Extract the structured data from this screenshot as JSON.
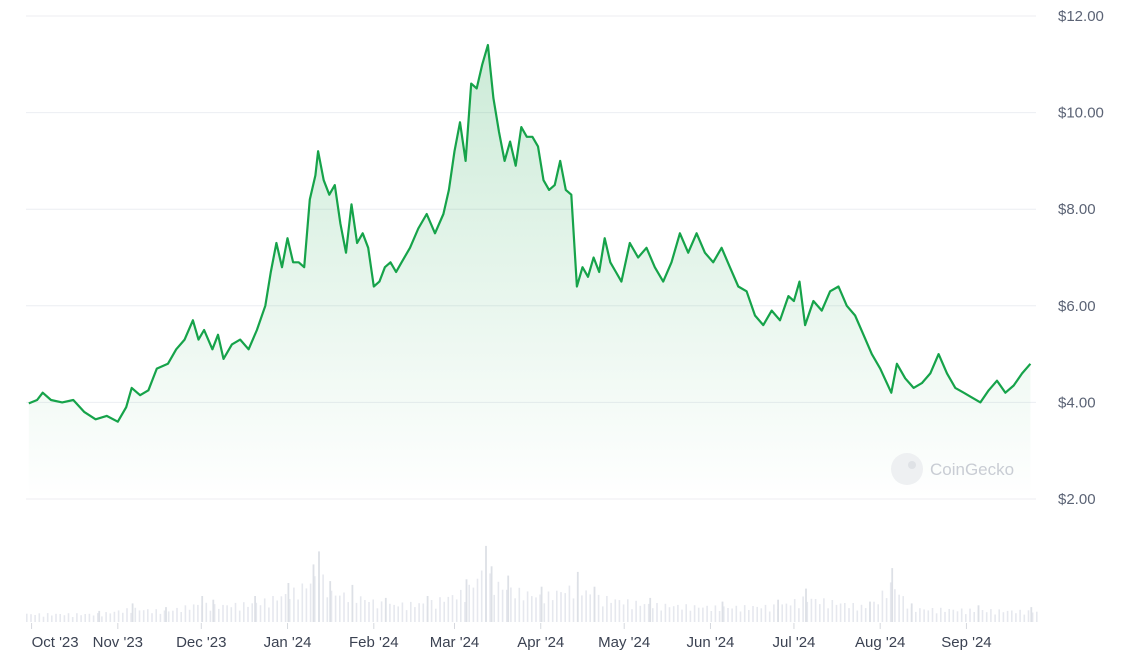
{
  "chart_data": {
    "type": "area",
    "watermark": "CoinGecko",
    "y_ticks": [
      {
        "value": 12,
        "label": "$12.00"
      },
      {
        "value": 10,
        "label": "$10.00"
      },
      {
        "value": 8,
        "label": "$8.00"
      },
      {
        "value": 6,
        "label": "$6.00"
      },
      {
        "value": 4,
        "label": "$4.00"
      },
      {
        "value": 2,
        "label": "$2.00"
      }
    ],
    "x_ticks": [
      {
        "date": "2023-10-01",
        "label": "Oct '23"
      },
      {
        "date": "2023-11-01",
        "label": "Nov '23"
      },
      {
        "date": "2023-12-01",
        "label": "Dec '23"
      },
      {
        "date": "2024-01-01",
        "label": "Jan '24"
      },
      {
        "date": "2024-02-01",
        "label": "Feb '24"
      },
      {
        "date": "2024-03-01",
        "label": "Mar '24"
      },
      {
        "date": "2024-04-01",
        "label": "Apr '24"
      },
      {
        "date": "2024-05-01",
        "label": "May '24"
      },
      {
        "date": "2024-06-01",
        "label": "Jun '24"
      },
      {
        "date": "2024-07-01",
        "label": "Jul '24"
      },
      {
        "date": "2024-08-01",
        "label": "Aug '24"
      },
      {
        "date": "2024-09-01",
        "label": "Sep '24"
      }
    ],
    "ylim": [
      2,
      12
    ],
    "grid": true,
    "colors": {
      "line": "#16a34a",
      "fill": "#16a34a",
      "volume": "#e6e8ee",
      "grid": "#eceef2"
    },
    "series": [
      {
        "values": [
          [
            "2023-09-30",
            3.98
          ],
          [
            "2023-10-03",
            4.05
          ],
          [
            "2023-10-05",
            4.2
          ],
          [
            "2023-10-08",
            4.05
          ],
          [
            "2023-10-12",
            4.0
          ],
          [
            "2023-10-16",
            4.05
          ],
          [
            "2023-10-20",
            3.8
          ],
          [
            "2023-10-24",
            3.65
          ],
          [
            "2023-10-28",
            3.72
          ],
          [
            "2023-11-01",
            3.6
          ],
          [
            "2023-11-04",
            3.9
          ],
          [
            "2023-11-06",
            4.3
          ],
          [
            "2023-11-09",
            4.15
          ],
          [
            "2023-11-12",
            4.25
          ],
          [
            "2023-11-15",
            4.7
          ],
          [
            "2023-11-19",
            4.8
          ],
          [
            "2023-11-22",
            5.1
          ],
          [
            "2023-11-25",
            5.3
          ],
          [
            "2023-11-28",
            5.7
          ],
          [
            "2023-11-30",
            5.3
          ],
          [
            "2023-12-02",
            5.5
          ],
          [
            "2023-12-05",
            5.1
          ],
          [
            "2023-12-07",
            5.4
          ],
          [
            "2023-12-09",
            4.9
          ],
          [
            "2023-12-12",
            5.2
          ],
          [
            "2023-12-15",
            5.3
          ],
          [
            "2023-12-18",
            5.1
          ],
          [
            "2023-12-21",
            5.5
          ],
          [
            "2023-12-24",
            6.0
          ],
          [
            "2023-12-26",
            6.7
          ],
          [
            "2023-12-28",
            7.3
          ],
          [
            "2023-12-30",
            6.8
          ],
          [
            "2024-01-01",
            7.4
          ],
          [
            "2024-01-03",
            6.9
          ],
          [
            "2024-01-05",
            6.9
          ],
          [
            "2024-01-07",
            6.8
          ],
          [
            "2024-01-09",
            8.2
          ],
          [
            "2024-01-11",
            8.7
          ],
          [
            "2024-01-12",
            9.2
          ],
          [
            "2024-01-14",
            8.6
          ],
          [
            "2024-01-16",
            8.3
          ],
          [
            "2024-01-18",
            8.5
          ],
          [
            "2024-01-20",
            7.7
          ],
          [
            "2024-01-22",
            7.1
          ],
          [
            "2024-01-24",
            8.1
          ],
          [
            "2024-01-26",
            7.3
          ],
          [
            "2024-01-28",
            7.5
          ],
          [
            "2024-01-30",
            7.2
          ],
          [
            "2024-02-01",
            6.4
          ],
          [
            "2024-02-03",
            6.5
          ],
          [
            "2024-02-05",
            6.8
          ],
          [
            "2024-02-07",
            6.9
          ],
          [
            "2024-02-09",
            6.7
          ],
          [
            "2024-02-11",
            6.9
          ],
          [
            "2024-02-14",
            7.2
          ],
          [
            "2024-02-17",
            7.6
          ],
          [
            "2024-02-20",
            7.9
          ],
          [
            "2024-02-23",
            7.5
          ],
          [
            "2024-02-26",
            7.9
          ],
          [
            "2024-02-28",
            8.4
          ],
          [
            "2024-03-01",
            9.2
          ],
          [
            "2024-03-03",
            9.8
          ],
          [
            "2024-03-05",
            9.0
          ],
          [
            "2024-03-07",
            10.6
          ],
          [
            "2024-03-09",
            10.5
          ],
          [
            "2024-03-11",
            11.0
          ],
          [
            "2024-03-13",
            11.4
          ],
          [
            "2024-03-15",
            10.3
          ],
          [
            "2024-03-17",
            9.6
          ],
          [
            "2024-03-19",
            9.0
          ],
          [
            "2024-03-21",
            9.4
          ],
          [
            "2024-03-23",
            8.9
          ],
          [
            "2024-03-25",
            9.7
          ],
          [
            "2024-03-27",
            9.5
          ],
          [
            "2024-03-29",
            9.5
          ],
          [
            "2024-03-31",
            9.3
          ],
          [
            "2024-04-02",
            8.6
          ],
          [
            "2024-04-04",
            8.4
          ],
          [
            "2024-04-06",
            8.5
          ],
          [
            "2024-04-08",
            9.0
          ],
          [
            "2024-04-10",
            8.4
          ],
          [
            "2024-04-12",
            8.3
          ],
          [
            "2024-04-14",
            6.4
          ],
          [
            "2024-04-16",
            6.8
          ],
          [
            "2024-04-18",
            6.6
          ],
          [
            "2024-04-20",
            7.0
          ],
          [
            "2024-04-22",
            6.7
          ],
          [
            "2024-04-24",
            7.4
          ],
          [
            "2024-04-26",
            6.9
          ],
          [
            "2024-04-28",
            6.7
          ],
          [
            "2024-04-30",
            6.5
          ],
          [
            "2024-05-03",
            7.3
          ],
          [
            "2024-05-06",
            7.0
          ],
          [
            "2024-05-09",
            7.2
          ],
          [
            "2024-05-12",
            6.8
          ],
          [
            "2024-05-15",
            6.5
          ],
          [
            "2024-05-18",
            6.9
          ],
          [
            "2024-05-21",
            7.5
          ],
          [
            "2024-05-24",
            7.1
          ],
          [
            "2024-05-27",
            7.5
          ],
          [
            "2024-05-30",
            7.1
          ],
          [
            "2024-06-02",
            6.9
          ],
          [
            "2024-06-05",
            7.2
          ],
          [
            "2024-06-08",
            6.8
          ],
          [
            "2024-06-11",
            6.4
          ],
          [
            "2024-06-14",
            6.3
          ],
          [
            "2024-06-17",
            5.8
          ],
          [
            "2024-06-20",
            5.6
          ],
          [
            "2024-06-23",
            5.9
          ],
          [
            "2024-06-26",
            5.7
          ],
          [
            "2024-06-29",
            6.2
          ],
          [
            "2024-07-01",
            6.1
          ],
          [
            "2024-07-03",
            6.5
          ],
          [
            "2024-07-05",
            5.6
          ],
          [
            "2024-07-08",
            6.1
          ],
          [
            "2024-07-11",
            5.9
          ],
          [
            "2024-07-14",
            6.3
          ],
          [
            "2024-07-17",
            6.4
          ],
          [
            "2024-07-20",
            6.0
          ],
          [
            "2024-07-23",
            5.8
          ],
          [
            "2024-07-26",
            5.4
          ],
          [
            "2024-07-29",
            5.0
          ],
          [
            "2024-08-01",
            4.7
          ],
          [
            "2024-08-05",
            4.2
          ],
          [
            "2024-08-07",
            4.8
          ],
          [
            "2024-08-10",
            4.5
          ],
          [
            "2024-08-13",
            4.3
          ],
          [
            "2024-08-16",
            4.4
          ],
          [
            "2024-08-19",
            4.6
          ],
          [
            "2024-08-22",
            5.0
          ],
          [
            "2024-08-25",
            4.6
          ],
          [
            "2024-08-28",
            4.3
          ],
          [
            "2024-08-31",
            4.2
          ],
          [
            "2024-09-03",
            4.1
          ],
          [
            "2024-09-06",
            4.0
          ],
          [
            "2024-09-09",
            4.25
          ],
          [
            "2024-09-12",
            4.45
          ],
          [
            "2024-09-15",
            4.2
          ],
          [
            "2024-09-18",
            4.35
          ],
          [
            "2024-09-21",
            4.6
          ],
          [
            "2024-09-24",
            4.8
          ]
        ]
      }
    ],
    "volume": [
      [
        "2023-10-25",
        0.6
      ],
      [
        "2023-11-06",
        1.0
      ],
      [
        "2023-11-18",
        0.8
      ],
      [
        "2023-12-01",
        1.4
      ],
      [
        "2023-12-05",
        1.2
      ],
      [
        "2023-12-20",
        1.4
      ],
      [
        "2024-01-01",
        2.1
      ],
      [
        "2024-01-10",
        3.1
      ],
      [
        "2024-01-12",
        3.8
      ],
      [
        "2024-01-16",
        2.2
      ],
      [
        "2024-01-24",
        2.0
      ],
      [
        "2024-02-05",
        1.3
      ],
      [
        "2024-02-20",
        1.4
      ],
      [
        "2024-03-05",
        2.3
      ],
      [
        "2024-03-12",
        4.1
      ],
      [
        "2024-03-14",
        3.0
      ],
      [
        "2024-03-20",
        2.5
      ],
      [
        "2024-04-01",
        1.9
      ],
      [
        "2024-04-14",
        2.7
      ],
      [
        "2024-04-20",
        1.9
      ],
      [
        "2024-05-10",
        1.3
      ],
      [
        "2024-06-05",
        1.1
      ],
      [
        "2024-06-25",
        1.2
      ],
      [
        "2024-07-05",
        1.8
      ],
      [
        "2024-07-28",
        1.1
      ],
      [
        "2024-08-05",
        2.9
      ],
      [
        "2024-08-12",
        1.0
      ],
      [
        "2024-09-05",
        0.9
      ],
      [
        "2024-09-24",
        0.8
      ]
    ]
  }
}
